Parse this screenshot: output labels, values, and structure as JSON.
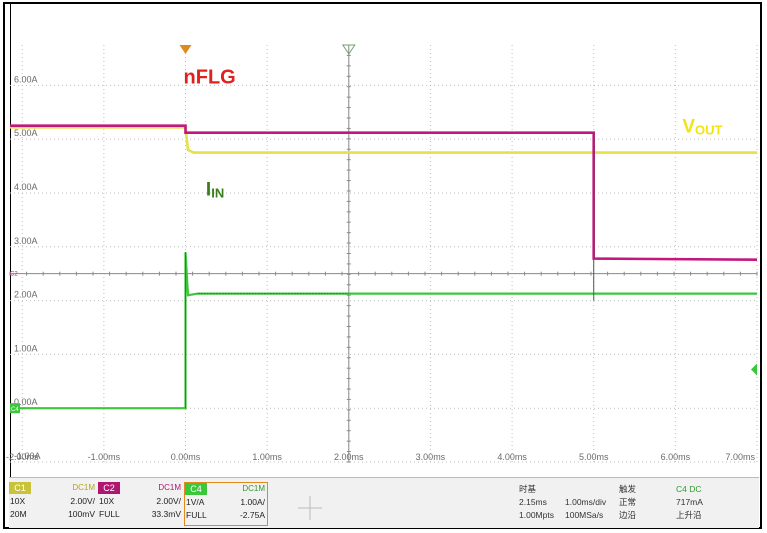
{
  "colors": {
    "c1": "#e6e14a",
    "c2": "#c2187c",
    "c4": "#3cc63c",
    "c4_dark": "#3a7d1a",
    "annotation_nflg": "#e0221f",
    "annotation_vout": "#f2e410",
    "annotation_iin": "#3a7d1a",
    "grid": "#bdbdbd",
    "cursor_orange": "#e08a1e"
  },
  "annotations": {
    "nflg": "nFLG",
    "vout_main": "V",
    "vout_sub": "OUT",
    "iin_main": "I",
    "iin_sub": "IN"
  },
  "markers": {
    "c2_level_marker": "C2",
    "c4_level_marker": "C4"
  },
  "chart_data": {
    "type": "line",
    "x_unit": "ms",
    "xlim": [
      -2.15,
      7.0
    ],
    "ylim": [
      -1.0,
      6.75
    ],
    "x_ticks": [
      "-2.00ms",
      "-1.00ms",
      "0.00ms",
      "1.00ms",
      "2.00ms",
      "3.00ms",
      "4.00ms",
      "5.00ms",
      "6.00ms",
      "7.00ms"
    ],
    "x_tick_values": [
      -2,
      -1,
      0,
      1,
      2,
      3,
      4,
      5,
      6,
      7
    ],
    "y_ticks": [
      "6.00A",
      "5.00A",
      "4.00A",
      "3.00A",
      "2.00A",
      "1.00A",
      "0.00A",
      "-1.00A"
    ],
    "y_tick_values": [
      6,
      5,
      4,
      3,
      2,
      1,
      0,
      -1
    ],
    "grid": true,
    "series": [
      {
        "name": "nFLG",
        "channel": "C2",
        "x": [
          -2.15,
          0.0,
          0.0,
          5.0,
          5.0,
          7.0
        ],
        "y": [
          5.25,
          5.25,
          5.12,
          5.12,
          2.78,
          2.76
        ]
      },
      {
        "name": "VOUT",
        "channel": "C1",
        "x": [
          -2.15,
          0.0,
          0.03,
          0.1,
          2.0,
          5.0,
          7.0
        ],
        "y": [
          5.22,
          5.22,
          4.8,
          4.75,
          4.75,
          4.75,
          4.75
        ]
      },
      {
        "name": "IN",
        "channel": "C4",
        "x": [
          -2.15,
          0.0,
          0.0,
          0.03,
          0.15,
          7.0
        ],
        "y": [
          0.0,
          0.0,
          2.9,
          2.1,
          2.13,
          2.13
        ]
      }
    ]
  },
  "status": {
    "c1": {
      "label": "C1",
      "coupling": "DC1M",
      "row1_left": "10X",
      "row1_right": "2.00V/",
      "row2_left": "20M",
      "row2_right": "100mV"
    },
    "c2": {
      "label": "C2",
      "coupling": "DC1M",
      "row1_left": "10X",
      "row1_right": "2.00V/",
      "row2_left": "FULL",
      "row2_right": "33.3mV"
    },
    "c4": {
      "label": "C4",
      "coupling": "DC1M",
      "row1_left": "1V/A",
      "row1_right": "1.00A/",
      "row2_left": "FULL",
      "row2_right": "-2.75A"
    },
    "timebase": {
      "title": "时基",
      "row1_a": "2.15ms",
      "row1_b": "1.00ms/div",
      "row2_a": "1.00Mpts",
      "row2_b": "100MSa/s"
    },
    "trigger": {
      "title": "触发",
      "source": "C4 DC",
      "row1_a": "正常",
      "row1_b": "717mA",
      "row2_a": "边沿",
      "row2_b": "上升沿"
    }
  }
}
